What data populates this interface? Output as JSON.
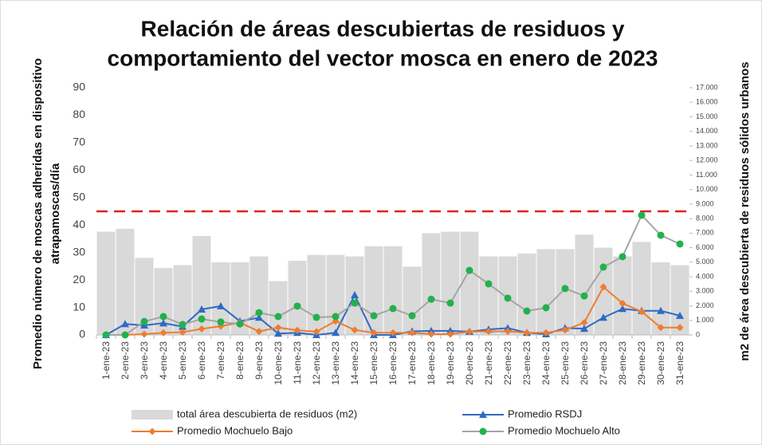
{
  "chart_data": {
    "type": "bar_line",
    "title": [
      "Relación de áreas descubiertas de residuos y",
      "comportamiento del vector mosca en enero de 2023"
    ],
    "y_label": [
      "Promedio número de moscas adheridas en dispositivo",
      "atrapamoscas/día"
    ],
    "y2_label": "m2 de área descubierta de residuos sólidos urbanos",
    "categories": [
      "1-ene-23",
      "2-ene-23",
      "3-ene-23",
      "4-ene-23",
      "5-ene-23",
      "6-ene-23",
      "7-ene-23",
      "8-ene-23",
      "9-ene-23",
      "10-ene-23",
      "11-ene-23",
      "12-ene-23",
      "13-ene-23",
      "14-ene-23",
      "15-ene-23",
      "16-ene-23",
      "17-ene-23",
      "18-ene-23",
      "19-ene-23",
      "20-ene-23",
      "21-ene-23",
      "22-ene-23",
      "23-ene-23",
      "24-ene-23",
      "25-ene-23",
      "26-ene-23",
      "27-ene-23",
      "28-ene-23",
      "29-ene-23",
      "30-ene-23",
      "31-ene-23"
    ],
    "series": [
      {
        "name": "total área descubierta de residuos (m2)",
        "color": "#d9d9d9",
        "kind": "bar",
        "axis": "y2",
        "values": [
          7100,
          7300,
          5300,
          4600,
          4800,
          6800,
          5000,
          5000,
          5400,
          3700,
          5100,
          5500,
          5500,
          5400,
          6100,
          6100,
          4700,
          7000,
          7100,
          7100,
          5400,
          5400,
          5600,
          5900,
          5900,
          6900,
          6000,
          5400,
          6400,
          5000,
          4800
        ]
      },
      {
        "name": "Promedio RSDJ",
        "color": "#2e6bc4",
        "kind": "line",
        "marker": "triangle",
        "values": [
          0,
          4,
          3.5,
          4.3,
          3,
          9.3,
          10.5,
          5,
          6.3,
          0.5,
          0.8,
          0,
          0.8,
          14.5,
          0,
          0,
          1.3,
          1.5,
          1.5,
          1.2,
          2,
          2.5,
          0.8,
          0.3,
          2.5,
          2.3,
          6.3,
          9.5,
          8.8,
          8.8,
          7
        ]
      },
      {
        "name": "Promedio Mochuelo Bajo",
        "color": "#ed7d31",
        "kind": "line",
        "marker": "diamond",
        "values": [
          0,
          0,
          0.3,
          0.8,
          1,
          2.2,
          3.2,
          4.5,
          1.3,
          2.7,
          1.7,
          1.2,
          5,
          1.8,
          0.8,
          0.8,
          0.8,
          0.3,
          0.3,
          1.2,
          1.3,
          1.3,
          0.8,
          0.8,
          1.8,
          4.5,
          17.5,
          11.5,
          8.5,
          2.7,
          2.7
        ]
      },
      {
        "name": "Promedio Mochuelo Alto",
        "color": "#a5a5a5",
        "marker_color": "#22b14c",
        "kind": "line",
        "marker": "circle",
        "values": [
          0,
          0,
          4.9,
          6.7,
          3.8,
          5.8,
          4.7,
          4,
          8.1,
          6.7,
          10.5,
          6.4,
          6.7,
          11.6,
          7,
          9.6,
          7,
          13,
          11.6,
          23.5,
          18.6,
          13.4,
          8.7,
          9.9,
          16.9,
          14.2,
          24.7,
          28.5,
          43.6,
          36.3,
          33.1
        ]
      }
    ],
    "reference_line": {
      "value": 45,
      "color": "#e02020"
    },
    "ylim": [
      0,
      90
    ],
    "yticks": [
      0,
      10,
      20,
      30,
      40,
      50,
      60,
      70,
      80,
      90
    ],
    "y2lim": [
      0,
      17000
    ],
    "y2ticks": [
      0,
      {
        "value": 1000,
        "label": "1.000"
      },
      {
        "value": 2000,
        "label": "2.000"
      },
      {
        "value": 3000,
        "label": "3.000"
      },
      {
        "value": 4000,
        "label": "4.000"
      },
      {
        "value": 5000,
        "label": "5.000"
      },
      {
        "value": 6000,
        "label": "6.000"
      },
      {
        "value": 7000,
        "label": "7.000"
      },
      {
        "value": 8000,
        "label": "8.000"
      },
      {
        "value": 9000,
        "label": "9.000"
      },
      {
        "value": 10000,
        "label": "10.000"
      },
      {
        "value": 11000,
        "label": "11.000"
      },
      {
        "value": 12000,
        "label": "12.000"
      },
      {
        "value": 13000,
        "label": "13.000"
      },
      {
        "value": 14000,
        "label": "14.000"
      },
      {
        "value": 15000,
        "label": "15.000"
      },
      {
        "value": 16000,
        "label": "16.000"
      },
      {
        "value": 17000,
        "label": "17.000"
      }
    ],
    "grid": false,
    "legend": "bottom"
  }
}
